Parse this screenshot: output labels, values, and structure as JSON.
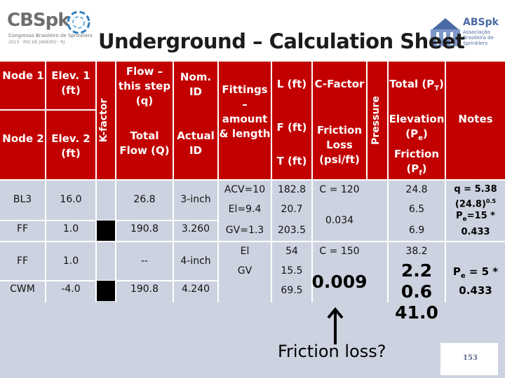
{
  "header": {
    "title": "Underground – Calculation Sheet",
    "logo_left": {
      "name": "CBSpk",
      "line1": "Congresso Brasileiro de Sprinklers",
      "line2": "2013 · RIO DE JANEIRO · RJ"
    },
    "logo_right": {
      "name": "ABSpk",
      "line1": "Associação Brasileira de Sprinklers"
    }
  },
  "columns": {
    "node1": "Node 1",
    "node2": "Node 2",
    "elev1": "Elev. 1 (ft)",
    "elev2": "Elev. 2 (ft)",
    "kfactor": "K-factor",
    "flow_step": "Flow – this step (q)",
    "total_flow": "Total Flow (Q)",
    "nom_id": "Nom. ID",
    "actual_id": "Actual ID",
    "fittings": "Fittings – amount & length",
    "l_ft": "L (ft)",
    "f_ft": "F (ft)",
    "t_ft": "T (ft)",
    "c_factor": "C-Factor",
    "friction_loss": "Friction Loss (psi/ft)",
    "pressure": "Pressure",
    "total_pt": "Total (P",
    "total_pt_sub": "T",
    "elevation_pe": "Elevation (P",
    "elevation_pe_sub": "e",
    "friction_pf": "Friction (P",
    "friction_pf_sub": "f",
    "close_paren": ")",
    "notes": "Notes"
  },
  "rows": [
    {
      "node": "BL3",
      "elev": "16.0",
      "flow": "26.8",
      "pipe": "3-inch"
    },
    {
      "node": "FF",
      "elev": "1.0",
      "flow": "190.8",
      "pipe": "3.260"
    },
    {
      "node": "FF",
      "elev": "1.0",
      "flow": "--",
      "pipe": "4-inch"
    },
    {
      "node": "CWM",
      "elev": "-4.0",
      "flow": "190.8",
      "pipe": "4.240"
    }
  ],
  "fittings": {
    "acv": "ACV=10",
    "el1": "El=9.4",
    "gv": "GV=1.3",
    "el2": "El",
    "gv2": "GV"
  },
  "lengths": {
    "l1": "182.8",
    "f1": "20.7",
    "t1": "203.5",
    "l2": "54",
    "f2": "15.5",
    "t2": "69.5"
  },
  "cfactors": {
    "c1": "C = 120",
    "loss1": "0.034",
    "c2": "C = 150",
    "loss2": "0.009"
  },
  "totals": {
    "pt1": "24.8",
    "pe1": "6.5",
    "pf1": "6.9",
    "pt2": "38.2",
    "pe2": "2.2",
    "pf2": "0.6",
    "total2": "41.0"
  },
  "notes": {
    "n1_line1": "q = 5.38",
    "n1_line2": "(24.8)",
    "n1_exp": "0.5",
    "n1_line3": "P",
    "n1_line3_sub": "e",
    "n1_line3_rest": "=15 *",
    "n1_line4": "0.433",
    "n2_line1": "P",
    "n2_line1_sub": "e",
    "n2_line1_rest": " = 5 *",
    "n2_line2": "0.433"
  },
  "annotation": "Friction loss?",
  "page_number": "153"
}
